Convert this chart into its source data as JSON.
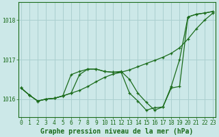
{
  "xlabel": "Graphe pression niveau de la mer (hPa)",
  "background_color": "#cce8e8",
  "grid_color": "#aacfcf",
  "line_color": "#1a6b1a",
  "ylim": [
    1015.55,
    1018.45
  ],
  "xlim": [
    -0.3,
    23.3
  ],
  "yticks": [
    1016,
    1017,
    1018
  ],
  "xticks": [
    0,
    1,
    2,
    3,
    4,
    5,
    6,
    7,
    8,
    9,
    10,
    11,
    12,
    13,
    14,
    15,
    16,
    17,
    18,
    19,
    20,
    21,
    22,
    23
  ],
  "series1_x": [
    0,
    1,
    2,
    3,
    4,
    5,
    6,
    7,
    8,
    9,
    10,
    11,
    12,
    13,
    14,
    15,
    16,
    17,
    18,
    19,
    20,
    21,
    22,
    23
  ],
  "series1_y": [
    1016.28,
    1016.1,
    1015.95,
    1016.0,
    1016.02,
    1016.08,
    1016.15,
    1016.22,
    1016.32,
    1016.44,
    1016.55,
    1016.63,
    1016.68,
    1016.74,
    1016.82,
    1016.9,
    1016.98,
    1017.06,
    1017.16,
    1017.3,
    1017.52,
    1017.78,
    1018.0,
    1018.18
  ],
  "series2_x": [
    0,
    1,
    2,
    3,
    4,
    5,
    6,
    7,
    8,
    9,
    10,
    11,
    12,
    13,
    14,
    15,
    16,
    17,
    18,
    19,
    20,
    21,
    22,
    23
  ],
  "series2_y": [
    1016.28,
    1016.1,
    1015.95,
    1016.0,
    1016.02,
    1016.08,
    1016.62,
    1016.7,
    1016.76,
    1016.76,
    1016.7,
    1016.68,
    1016.7,
    1016.5,
    1016.15,
    1015.92,
    1015.72,
    1015.8,
    1016.28,
    1016.32,
    1018.08,
    1018.15,
    1018.18,
    1018.22
  ],
  "series3_x": [
    0,
    1,
    2,
    3,
    4,
    5,
    6,
    7,
    8,
    9,
    10,
    11,
    12,
    13,
    14,
    15,
    16,
    17,
    18,
    19,
    20,
    21,
    22,
    23
  ],
  "series3_y": [
    1016.28,
    1016.1,
    1015.95,
    1016.0,
    1016.02,
    1016.08,
    1016.15,
    1016.62,
    1016.76,
    1016.76,
    1016.7,
    1016.68,
    1016.68,
    1016.15,
    1015.95,
    1015.72,
    1015.78,
    1015.8,
    1016.32,
    1017.0,
    1018.08,
    1018.15,
    1018.18,
    1018.22
  ],
  "tick_fontsize": 5.8,
  "label_fontsize": 7.0,
  "border_color": "#1a6b1a"
}
